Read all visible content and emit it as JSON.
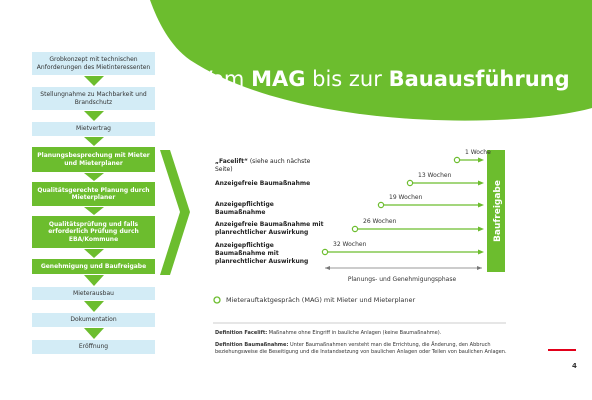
{
  "title": {
    "parts": [
      "Vom ",
      "MAG",
      " bis zur ",
      "Bauausführung"
    ]
  },
  "steps": [
    {
      "text": "Grobkonzept mit technischen Anforderungen des Mietinteressenten",
      "style": "light"
    },
    {
      "text": "Stellungnahme zu Machbarkeit und Brandschutz",
      "style": "light"
    },
    {
      "text": "Mietvertrag",
      "style": "light"
    },
    {
      "text": "Planungsbesprechung mit Mieter und Mieterplaner",
      "style": "green"
    },
    {
      "text": "Qualitätsgerechte Planung durch Mieterplaner",
      "style": "green"
    },
    {
      "text": "Qualitätsprüfung und falls erforderlich Prüfung durch EBA/Kommune",
      "style": "green"
    },
    {
      "text": "Genehmigung und Baufreigabe",
      "style": "green"
    },
    {
      "text": "Mieterausbau",
      "style": "light"
    },
    {
      "text": "Dokumentation",
      "style": "light"
    },
    {
      "text": "Eröffnung",
      "style": "light"
    }
  ],
  "rows": [
    {
      "label": "„Facelift“",
      "note": " (siehe auch nächste Seite)",
      "duration": "1 Woche"
    },
    {
      "label": "Anzeigefreie Baumaßnahme",
      "note": "",
      "duration": "13 Wochen"
    },
    {
      "label": "Anzeigepflichtige Baumaßnahme",
      "note": "",
      "duration": "19 Wochen"
    },
    {
      "label": "Anzeigefreie Baumaßnahme mit planrechtlicher Auswirkung",
      "note": "",
      "duration": "26 Wochen"
    },
    {
      "label": "Anzeigepflichtige Baumaßnahme mit planrechtlicher Auswirkung",
      "note": "",
      "duration": "32 Wochen"
    }
  ],
  "milestone": "Baufreigabe",
  "phase": "Planungs- und Genehmigungsphase",
  "legend": "Mieterauftaktgespräch (MAG) mit Mieter und Mieterplaner",
  "definitions": [
    {
      "term": "Definition Facelift:",
      "text": " Maßnahme ohne Eingriff in bauliche Anlagen (keine Baumaßnahme)."
    },
    {
      "term": "Definition Baumaßnahme:",
      "text": " Unter Baumaßnahmen versteht man die Errichtung, die Änderung, den Abbruch beziehungsweise die Beseitigung und die Instandsetzung von baulichen Anlagen oder Teilen von baulichen Anlagen."
    }
  ],
  "page_number": "4"
}
